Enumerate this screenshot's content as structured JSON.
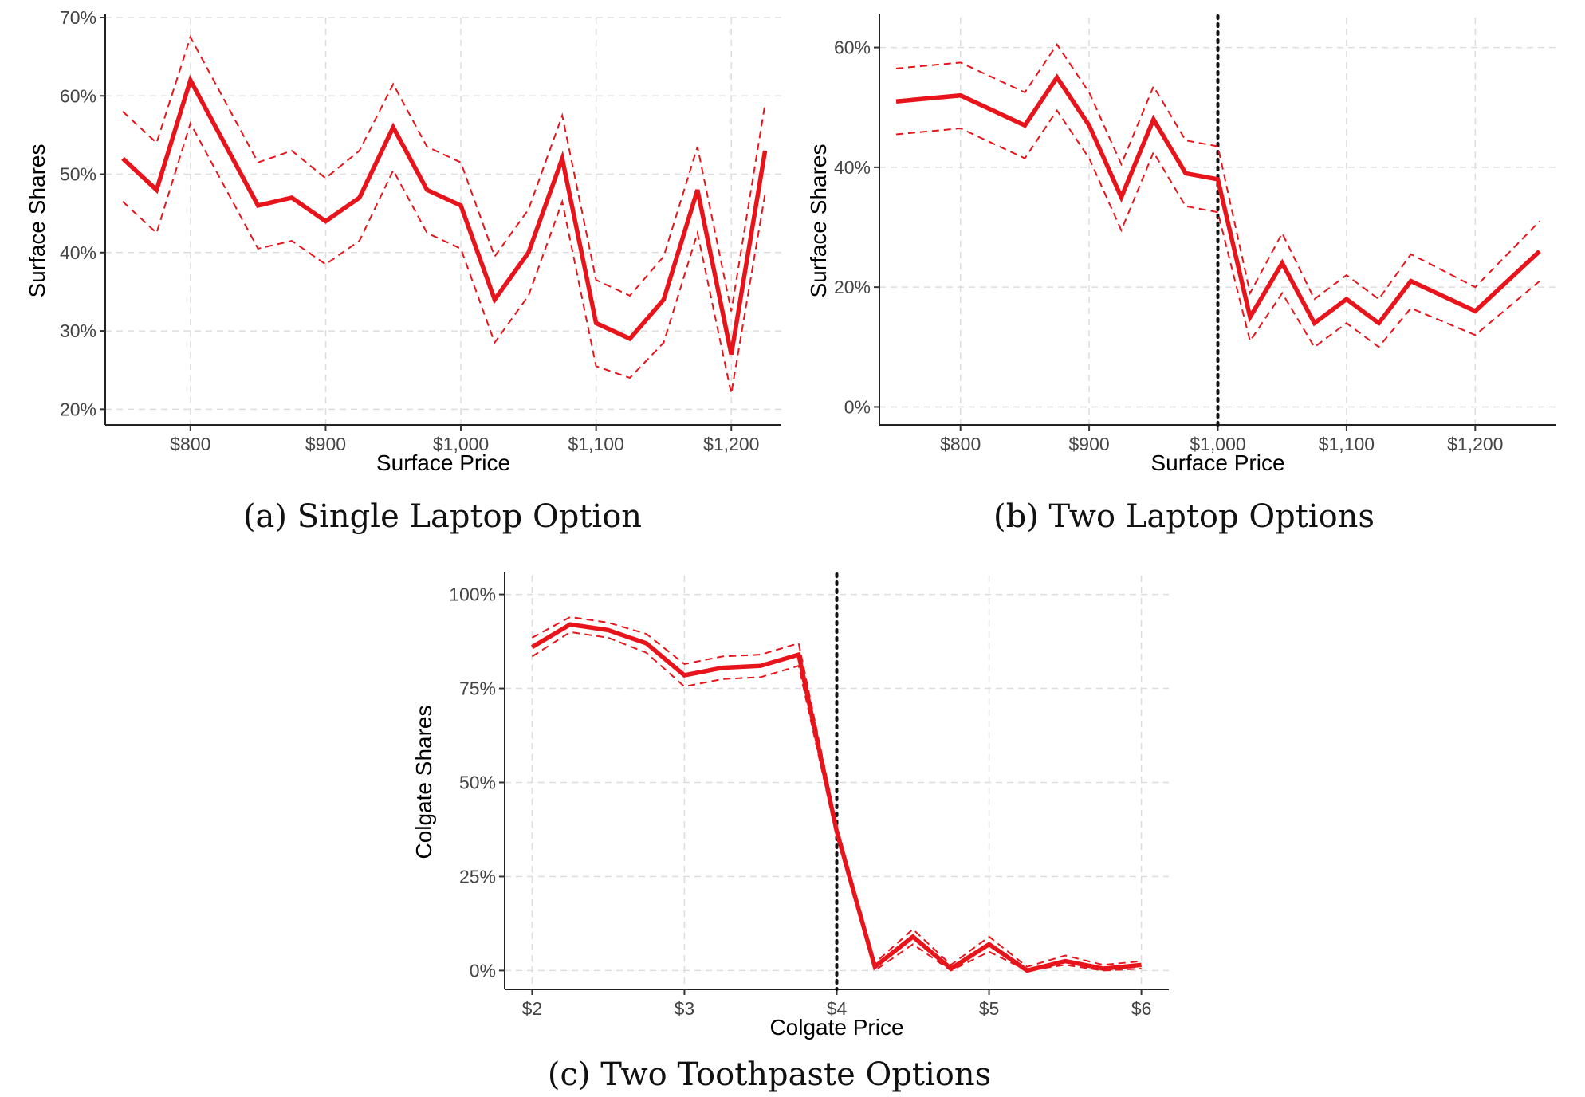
{
  "line_color": "#e8141b",
  "chart_data": [
    {
      "id": "a",
      "type": "line",
      "caption": "(a) Single Laptop Option",
      "xlabel": "Surface Price",
      "ylabel": "Surface Shares",
      "xlim": [
        737,
        1237
      ],
      "ylim": [
        18,
        70
      ],
      "xticks": [
        800,
        900,
        1000,
        1100,
        1200
      ],
      "xtick_labels": [
        "$800",
        "$900",
        "$1,000",
        "$1,100",
        "$1,200"
      ],
      "yticks": [
        20,
        30,
        40,
        50,
        60,
        70
      ],
      "ytick_labels": [
        "20%",
        "30%",
        "40%",
        "50%",
        "60%",
        "70%"
      ],
      "grid": true,
      "vline": null,
      "x": [
        750,
        775,
        800,
        825,
        850,
        875,
        900,
        925,
        950,
        975,
        1000,
        1025,
        1050,
        1075,
        1100,
        1125,
        1150,
        1175,
        1200,
        1225
      ],
      "series": [
        {
          "role": "estimate",
          "values": [
            52,
            48,
            62,
            54,
            46,
            47,
            44,
            47,
            56,
            48,
            46,
            34,
            40,
            52,
            31,
            29,
            34,
            48,
            27,
            53
          ]
        },
        {
          "role": "upper",
          "values": [
            58,
            54,
            67.5,
            59.5,
            51.5,
            53,
            49.5,
            53,
            61.5,
            53.5,
            51.5,
            39.5,
            45.5,
            57.5,
            36.5,
            34.5,
            39.5,
            53.5,
            32.5,
            59
          ]
        },
        {
          "role": "lower",
          "values": [
            46.5,
            42.5,
            56.5,
            48.5,
            40.5,
            41.5,
            38.5,
            41.5,
            50.5,
            42.5,
            40.5,
            28.5,
            34.5,
            46.5,
            25.5,
            24,
            28.5,
            42.5,
            22,
            47.5
          ]
        }
      ]
    },
    {
      "id": "b",
      "type": "line",
      "caption": "(b) Two Laptop Options",
      "xlabel": "Surface Price",
      "ylabel": "Surface Shares",
      "xlim": [
        737,
        1263
      ],
      "ylim": [
        -3,
        65
      ],
      "xticks": [
        800,
        900,
        1000,
        1100,
        1200
      ],
      "xtick_labels": [
        "$800",
        "$900",
        "$1,000",
        "$1,100",
        "$1,200"
      ],
      "yticks": [
        0,
        20,
        40,
        60
      ],
      "ytick_labels": [
        "0%",
        "20%",
        "40%",
        "60%"
      ],
      "grid": true,
      "vline": 1000,
      "x": [
        750,
        800,
        850,
        875,
        900,
        925,
        950,
        975,
        1000,
        1025,
        1050,
        1075,
        1100,
        1125,
        1150,
        1200,
        1250
      ],
      "series": [
        {
          "role": "estimate",
          "values": [
            51,
            52,
            47,
            55,
            47,
            35,
            48,
            39,
            38,
            15,
            24,
            14,
            18,
            14,
            21,
            16,
            26
          ]
        },
        {
          "role": "upper",
          "values": [
            56.5,
            57.5,
            52.5,
            60.5,
            52.5,
            40.5,
            53.5,
            44.5,
            43.5,
            19,
            29,
            18,
            22,
            18,
            25.5,
            20,
            31
          ]
        },
        {
          "role": "lower",
          "values": [
            45.5,
            46.5,
            41.5,
            49.5,
            41.5,
            29.5,
            42.5,
            33.5,
            32.5,
            11,
            19,
            10,
            14,
            10,
            16.5,
            12,
            21
          ]
        }
      ]
    },
    {
      "id": "c",
      "type": "line",
      "caption": "(c) Two Toothpaste Options",
      "xlabel": "Colgate Price",
      "ylabel": "Colgate Shares",
      "xlim": [
        1.82,
        6.18
      ],
      "ylim": [
        -5,
        105
      ],
      "xticks": [
        2,
        3,
        4,
        5,
        6
      ],
      "xtick_labels": [
        "$2",
        "$3",
        "$4",
        "$5",
        "$6"
      ],
      "yticks": [
        0,
        25,
        50,
        75,
        100
      ],
      "ytick_labels": [
        "0%",
        "25%",
        "50%",
        "75%",
        "100%"
      ],
      "grid": true,
      "vline": 4,
      "x": [
        2,
        2.25,
        2.5,
        2.75,
        3,
        3.25,
        3.5,
        3.75,
        4,
        4.25,
        4.5,
        4.75,
        5,
        5.25,
        5.5,
        5.75,
        6
      ],
      "series": [
        {
          "role": "estimate",
          "values": [
            86,
            92,
            90.5,
            87,
            78.5,
            80.5,
            81,
            84,
            37,
            1,
            9,
            0.5,
            7,
            0,
            2.5,
            0.5,
            1.5
          ]
        },
        {
          "role": "upper",
          "values": [
            88.5,
            94,
            92.5,
            89.5,
            81.5,
            83.5,
            84,
            87,
            38.5,
            2,
            11,
            1.5,
            9,
            1,
            4,
            1.5,
            2.5
          ]
        },
        {
          "role": "lower",
          "values": [
            83.5,
            90,
            88.5,
            84.5,
            75.5,
            77.5,
            78,
            81,
            35.5,
            0,
            7,
            0,
            5,
            0,
            1.5,
            0,
            0.5
          ]
        }
      ]
    }
  ]
}
